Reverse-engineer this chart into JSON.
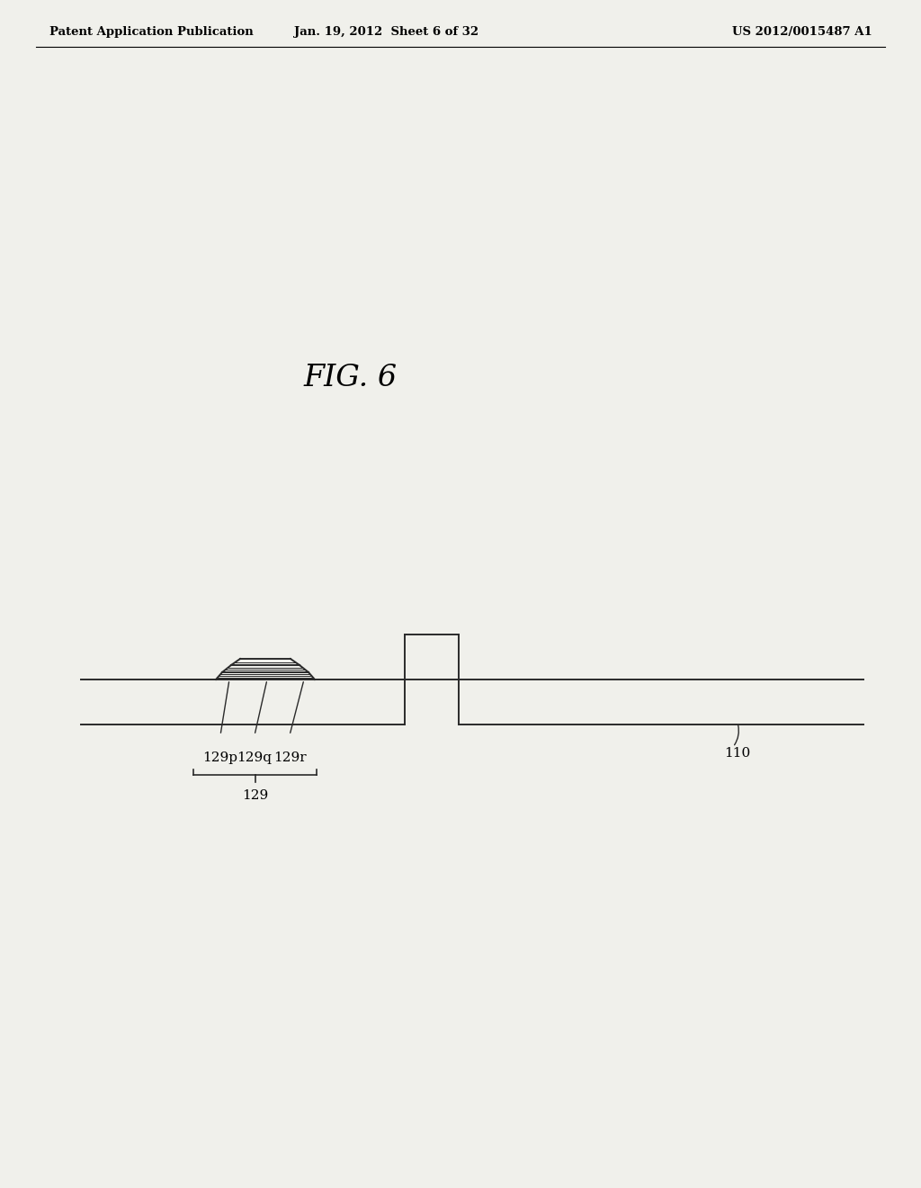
{
  "bg_color": "#f0f0eb",
  "title": "FIG. 6",
  "header_left": "Patent Application Publication",
  "header_center": "Jan. 19, 2012  Sheet 6 of 32",
  "header_right": "US 2012/0015487 A1",
  "label_110": "110",
  "label_129": "129",
  "label_129p": "129p",
  "label_129q": "129q",
  "label_129r": "129r",
  "line_color": "#2a2a2a"
}
